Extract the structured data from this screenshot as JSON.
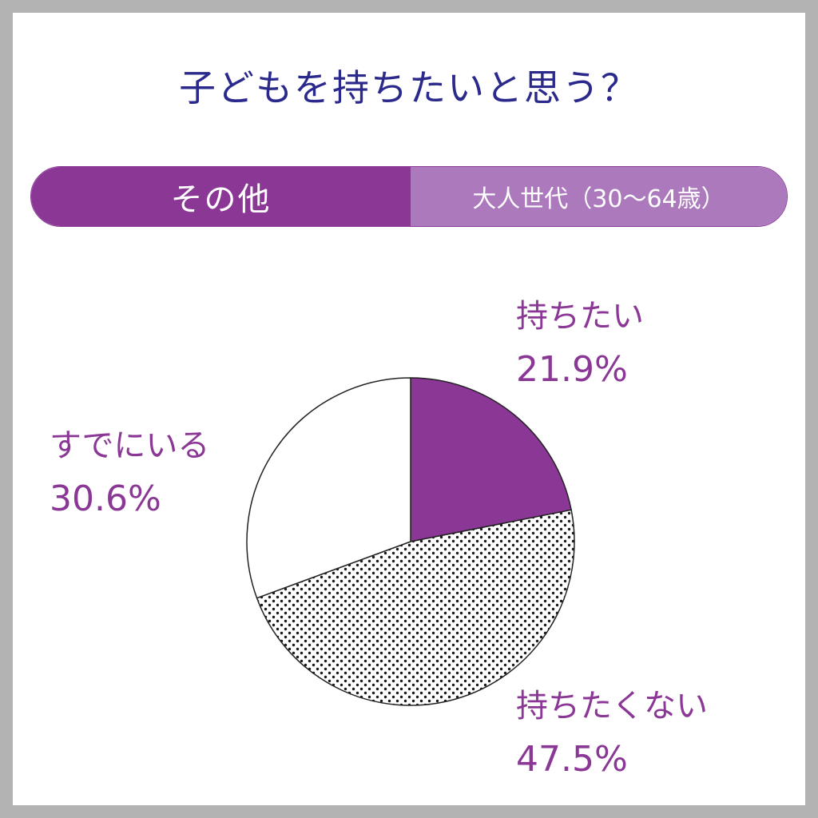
{
  "title": "子どもを持ちたいと思う？",
  "header_tabs": {
    "left": "その他",
    "right": "大人世代（30～64歳）"
  },
  "colors": {
    "title": "#2b2a8c",
    "accent": "#8a3795",
    "accent_light": "#ab79bc",
    "label": "#8a3795"
  },
  "chart_data": {
    "type": "pie",
    "title": "子どもを持ちたいと思う？",
    "slices": [
      {
        "label": "持ちたい",
        "value": 21.9,
        "display": "21.9%",
        "fill": "solid",
        "color": "#8a3795"
      },
      {
        "label": "持ちたくない",
        "value": 47.5,
        "display": "47.5%",
        "fill": "dots",
        "color": "#ffffff"
      },
      {
        "label": "すでにいる",
        "value": 30.6,
        "display": "30.6%",
        "fill": "solid",
        "color": "#ffffff"
      }
    ],
    "start": "top",
    "direction": "clockwise"
  }
}
